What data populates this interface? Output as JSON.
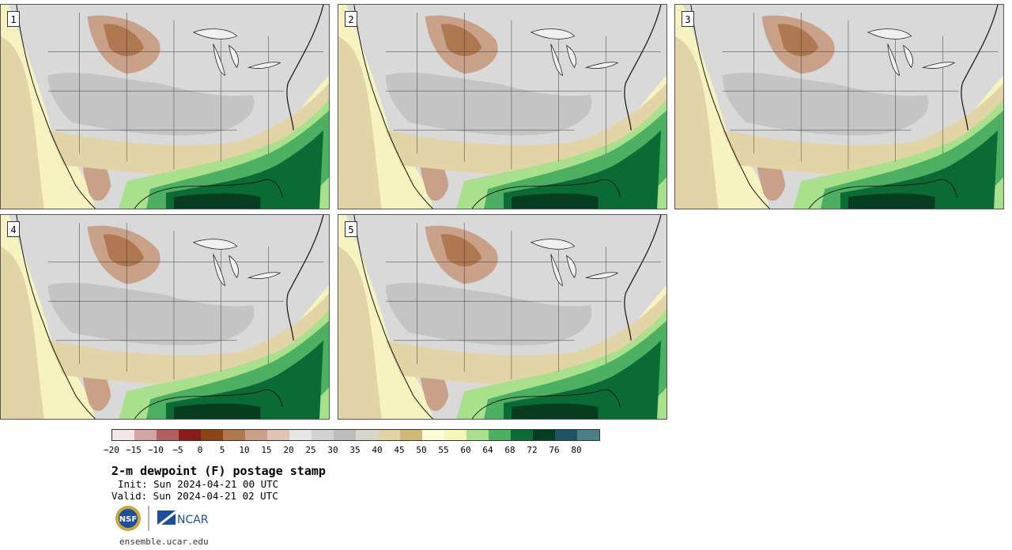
{
  "panels": [
    {
      "label": "1"
    },
    {
      "label": "2"
    },
    {
      "label": "3"
    },
    {
      "label": "4"
    },
    {
      "label": "5"
    }
  ],
  "legend": {
    "colors": [
      "#f2e6e6",
      "#d4a3a3",
      "#b45f5f",
      "#8b1a1a",
      "#8b4513",
      "#b07850",
      "#c9a088",
      "#e0c4b2",
      "#e6e6e6",
      "#d2d2d2",
      "#bdbdbd",
      "#d9d6cc",
      "#e3d4a8",
      "#d2b878",
      "#fbfbd6",
      "#f6f6b8",
      "#a8e08c",
      "#4caf62",
      "#0b6b35",
      "#063d20",
      "#1f5562",
      "#4f7f86"
    ],
    "ticks": [
      "−20",
      "−15",
      "−10",
      "−5",
      "0",
      "5",
      "10",
      "15",
      "20",
      "25",
      "30",
      "35",
      "40",
      "45",
      "50",
      "55",
      "60",
      "64",
      "68",
      "72",
      "76",
      "80"
    ]
  },
  "title": "2-m dewpoint (F) postage stamp",
  "init": "Init: Sun 2024-04-21 00 UTC",
  "valid": "Valid: Sun 2024-04-21 02 UTC",
  "logos": {
    "nsf": "NSF",
    "ncar": "NCAR"
  },
  "credit": "ensemble.ucar.edu"
}
